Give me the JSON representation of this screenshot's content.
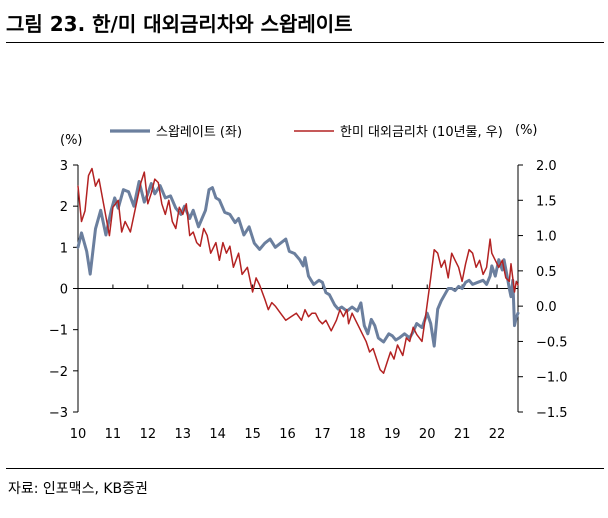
{
  "figure": {
    "title": "그림 23. 한/미 대외금리차와 스왑레이트",
    "source": "자료: 인포맥스, KB증권"
  },
  "chart_data": {
    "type": "line",
    "left_unit": "(%)",
    "right_unit": "(%)",
    "x_ticks": [
      "10",
      "11",
      "12",
      "13",
      "14",
      "15",
      "16",
      "17",
      "18",
      "19",
      "20",
      "21",
      "22"
    ],
    "y_left_ticks": [
      "3",
      "2",
      "1",
      "0",
      "−1",
      "−2",
      "−3"
    ],
    "y_right_ticks": [
      "2.0",
      "1.5",
      "1.0",
      "0.5",
      "0.0",
      "−0.5",
      "−1.0",
      "−1.5"
    ],
    "y_left_range": [
      -3,
      3
    ],
    "y_right_range": [
      -1.5,
      2.0
    ],
    "x_range": [
      2010,
      2022.6
    ],
    "series": [
      {
        "name": "스왑레이트 (좌)",
        "axis": "left",
        "color": "#6b7f9e",
        "points": [
          [
            2010.0,
            1.0
          ],
          [
            2010.1,
            1.35
          ],
          [
            2010.25,
            0.9
          ],
          [
            2010.35,
            0.35
          ],
          [
            2010.5,
            1.45
          ],
          [
            2010.65,
            1.9
          ],
          [
            2010.8,
            1.3
          ],
          [
            2010.95,
            1.9
          ],
          [
            2011.05,
            2.2
          ],
          [
            2011.15,
            1.95
          ],
          [
            2011.3,
            2.4
          ],
          [
            2011.45,
            2.35
          ],
          [
            2011.6,
            2.0
          ],
          [
            2011.75,
            2.6
          ],
          [
            2011.9,
            2.1
          ],
          [
            2012.0,
            2.3
          ],
          [
            2012.1,
            2.55
          ],
          [
            2012.2,
            2.3
          ],
          [
            2012.35,
            2.5
          ],
          [
            2012.5,
            2.2
          ],
          [
            2012.65,
            2.25
          ],
          [
            2012.8,
            1.95
          ],
          [
            2012.95,
            1.8
          ],
          [
            2013.05,
            2.0
          ],
          [
            2013.2,
            1.7
          ],
          [
            2013.3,
            1.9
          ],
          [
            2013.45,
            1.5
          ],
          [
            2013.55,
            1.7
          ],
          [
            2013.65,
            1.9
          ],
          [
            2013.75,
            2.4
          ],
          [
            2013.85,
            2.45
          ],
          [
            2013.95,
            2.2
          ],
          [
            2014.05,
            2.15
          ],
          [
            2014.2,
            1.85
          ],
          [
            2014.35,
            1.8
          ],
          [
            2014.5,
            1.6
          ],
          [
            2014.6,
            1.7
          ],
          [
            2014.75,
            1.3
          ],
          [
            2014.9,
            1.5
          ],
          [
            2015.05,
            1.1
          ],
          [
            2015.2,
            0.95
          ],
          [
            2015.35,
            1.1
          ],
          [
            2015.5,
            1.2
          ],
          [
            2015.65,
            1.0
          ],
          [
            2015.8,
            1.1
          ],
          [
            2015.95,
            1.2
          ],
          [
            2016.05,
            0.9
          ],
          [
            2016.2,
            0.85
          ],
          [
            2016.35,
            0.7
          ],
          [
            2016.45,
            0.55
          ],
          [
            2016.5,
            0.75
          ],
          [
            2016.6,
            0.3
          ],
          [
            2016.75,
            0.1
          ],
          [
            2016.9,
            0.2
          ],
          [
            2017.0,
            0.15
          ],
          [
            2017.1,
            -0.1
          ],
          [
            2017.2,
            -0.15
          ],
          [
            2017.35,
            -0.4
          ],
          [
            2017.45,
            -0.5
          ],
          [
            2017.55,
            -0.45
          ],
          [
            2017.7,
            -0.55
          ],
          [
            2017.85,
            -0.45
          ],
          [
            2018.0,
            -0.55
          ],
          [
            2018.1,
            -0.35
          ],
          [
            2018.2,
            -0.9
          ],
          [
            2018.3,
            -1.1
          ],
          [
            2018.4,
            -0.75
          ],
          [
            2018.5,
            -0.9
          ],
          [
            2018.6,
            -1.2
          ],
          [
            2018.75,
            -1.3
          ],
          [
            2018.9,
            -1.1
          ],
          [
            2019.0,
            -1.15
          ],
          [
            2019.1,
            -1.25
          ],
          [
            2019.2,
            -1.2
          ],
          [
            2019.35,
            -1.1
          ],
          [
            2019.5,
            -1.2
          ],
          [
            2019.6,
            -1.05
          ],
          [
            2019.7,
            -0.85
          ],
          [
            2019.85,
            -0.95
          ],
          [
            2020.0,
            -0.6
          ],
          [
            2020.1,
            -0.85
          ],
          [
            2020.2,
            -1.4
          ],
          [
            2020.3,
            -0.5
          ],
          [
            2020.4,
            -0.3
          ],
          [
            2020.5,
            -0.15
          ],
          [
            2020.6,
            0.0
          ],
          [
            2020.7,
            0.0
          ],
          [
            2020.8,
            -0.05
          ],
          [
            2020.9,
            0.05
          ],
          [
            2021.0,
            0.0
          ],
          [
            2021.1,
            0.15
          ],
          [
            2021.2,
            0.2
          ],
          [
            2021.3,
            0.1
          ],
          [
            2021.45,
            0.15
          ],
          [
            2021.6,
            0.2
          ],
          [
            2021.7,
            0.1
          ],
          [
            2021.8,
            0.3
          ],
          [
            2021.85,
            0.55
          ],
          [
            2021.95,
            0.3
          ],
          [
            2022.05,
            0.7
          ],
          [
            2022.15,
            0.45
          ],
          [
            2022.2,
            0.7
          ],
          [
            2022.3,
            0.25
          ],
          [
            2022.35,
            0.0
          ],
          [
            2022.4,
            -0.2
          ],
          [
            2022.45,
            0.2
          ],
          [
            2022.5,
            -0.9
          ],
          [
            2022.55,
            -0.7
          ],
          [
            2022.6,
            -0.6
          ]
        ]
      },
      {
        "name": "한미 대외금리차 (10년물, 우)",
        "axis": "right",
        "color": "#b32222",
        "points": [
          [
            2010.0,
            1.7
          ],
          [
            2010.1,
            1.2
          ],
          [
            2010.2,
            1.35
          ],
          [
            2010.3,
            1.85
          ],
          [
            2010.4,
            1.95
          ],
          [
            2010.5,
            1.7
          ],
          [
            2010.6,
            1.8
          ],
          [
            2010.75,
            1.4
          ],
          [
            2010.9,
            1.0
          ],
          [
            2011.0,
            1.4
          ],
          [
            2011.15,
            1.5
          ],
          [
            2011.25,
            1.05
          ],
          [
            2011.35,
            1.2
          ],
          [
            2011.5,
            1.05
          ],
          [
            2011.65,
            1.4
          ],
          [
            2011.8,
            1.75
          ],
          [
            2011.9,
            1.9
          ],
          [
            2012.0,
            1.45
          ],
          [
            2012.1,
            1.6
          ],
          [
            2012.2,
            1.8
          ],
          [
            2012.3,
            1.75
          ],
          [
            2012.4,
            1.45
          ],
          [
            2012.5,
            1.3
          ],
          [
            2012.6,
            1.5
          ],
          [
            2012.7,
            1.2
          ],
          [
            2012.8,
            1.1
          ],
          [
            2012.9,
            1.4
          ],
          [
            2013.0,
            1.3
          ],
          [
            2013.1,
            1.45
          ],
          [
            2013.2,
            1.0
          ],
          [
            2013.3,
            1.05
          ],
          [
            2013.4,
            0.9
          ],
          [
            2013.5,
            0.85
          ],
          [
            2013.6,
            1.1
          ],
          [
            2013.7,
            1.0
          ],
          [
            2013.8,
            0.75
          ],
          [
            2013.95,
            0.9
          ],
          [
            2014.05,
            0.65
          ],
          [
            2014.15,
            0.9
          ],
          [
            2014.25,
            0.75
          ],
          [
            2014.35,
            0.85
          ],
          [
            2014.45,
            0.55
          ],
          [
            2014.6,
            0.75
          ],
          [
            2014.7,
            0.45
          ],
          [
            2014.85,
            0.55
          ],
          [
            2015.0,
            0.2
          ],
          [
            2015.1,
            0.4
          ],
          [
            2015.2,
            0.3
          ],
          [
            2015.35,
            0.1
          ],
          [
            2015.45,
            -0.05
          ],
          [
            2015.55,
            0.05
          ],
          [
            2015.65,
            0.0
          ],
          [
            2015.8,
            -0.1
          ],
          [
            2015.95,
            -0.2
          ],
          [
            2016.1,
            -0.15
          ],
          [
            2016.25,
            -0.1
          ],
          [
            2016.4,
            -0.2
          ],
          [
            2016.5,
            -0.05
          ],
          [
            2016.6,
            -0.15
          ],
          [
            2016.7,
            -0.1
          ],
          [
            2016.8,
            -0.1
          ],
          [
            2016.9,
            -0.2
          ],
          [
            2017.0,
            -0.25
          ],
          [
            2017.1,
            -0.2
          ],
          [
            2017.25,
            -0.35
          ],
          [
            2017.4,
            -0.2
          ],
          [
            2017.5,
            -0.05
          ],
          [
            2017.6,
            -0.15
          ],
          [
            2017.7,
            -0.05
          ],
          [
            2017.75,
            -0.25
          ],
          [
            2017.85,
            -0.1
          ],
          [
            2017.95,
            -0.2
          ],
          [
            2018.05,
            -0.3
          ],
          [
            2018.15,
            -0.4
          ],
          [
            2018.25,
            -0.5
          ],
          [
            2018.35,
            -0.65
          ],
          [
            2018.45,
            -0.6
          ],
          [
            2018.55,
            -0.75
          ],
          [
            2018.65,
            -0.9
          ],
          [
            2018.75,
            -0.95
          ],
          [
            2018.85,
            -0.8
          ],
          [
            2018.95,
            -0.65
          ],
          [
            2019.05,
            -0.75
          ],
          [
            2019.15,
            -0.55
          ],
          [
            2019.3,
            -0.7
          ],
          [
            2019.4,
            -0.45
          ],
          [
            2019.5,
            -0.5
          ],
          [
            2019.6,
            -0.3
          ],
          [
            2019.7,
            -0.4
          ],
          [
            2019.85,
            -0.5
          ],
          [
            2019.95,
            -0.15
          ],
          [
            2020.1,
            0.4
          ],
          [
            2020.2,
            0.8
          ],
          [
            2020.3,
            0.75
          ],
          [
            2020.4,
            0.55
          ],
          [
            2020.5,
            0.65
          ],
          [
            2020.6,
            0.4
          ],
          [
            2020.7,
            0.75
          ],
          [
            2020.8,
            0.65
          ],
          [
            2020.9,
            0.55
          ],
          [
            2021.0,
            0.35
          ],
          [
            2021.1,
            0.6
          ],
          [
            2021.2,
            0.8
          ],
          [
            2021.3,
            0.75
          ],
          [
            2021.4,
            0.55
          ],
          [
            2021.5,
            0.65
          ],
          [
            2021.6,
            0.45
          ],
          [
            2021.7,
            0.55
          ],
          [
            2021.8,
            0.95
          ],
          [
            2021.85,
            0.75
          ],
          [
            2021.95,
            0.65
          ],
          [
            2022.05,
            0.55
          ],
          [
            2022.15,
            0.65
          ],
          [
            2022.25,
            0.4
          ],
          [
            2022.35,
            0.35
          ],
          [
            2022.4,
            0.6
          ],
          [
            2022.5,
            0.2
          ],
          [
            2022.55,
            0.35
          ],
          [
            2022.6,
            0.3
          ]
        ]
      }
    ]
  }
}
